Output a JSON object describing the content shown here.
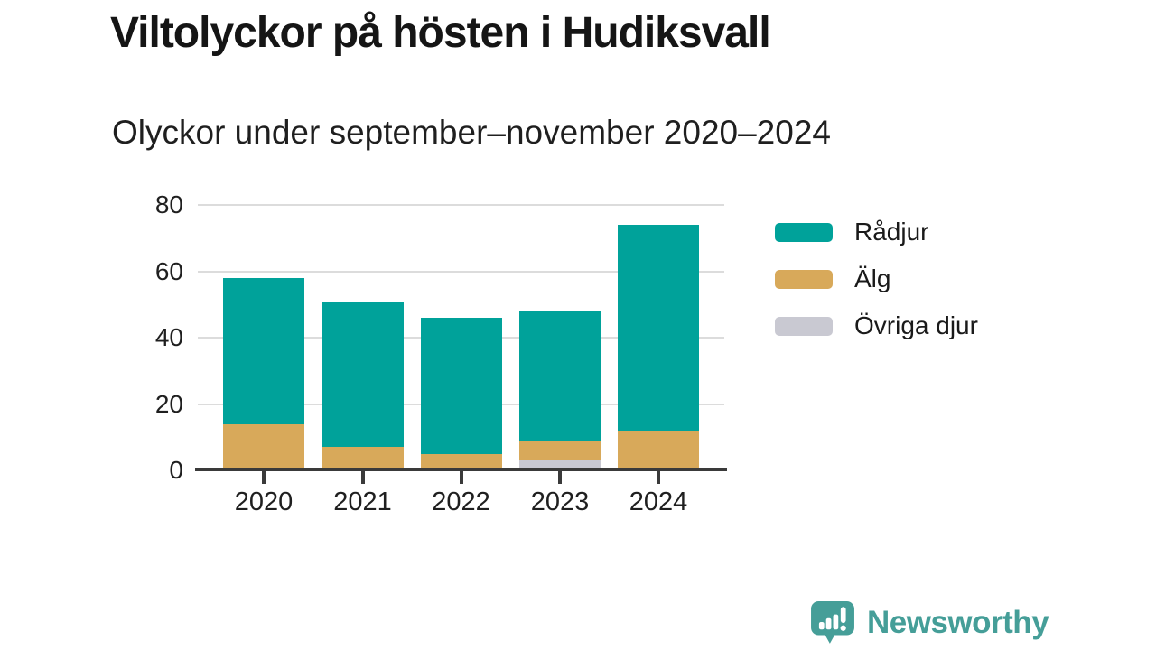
{
  "header": {
    "title": "Viltolyckor på hösten i Hudiksvall",
    "subtitle": "Olyckor under september–november 2020–2024"
  },
  "chart_data": {
    "type": "bar",
    "stacked": true,
    "title": "Viltolyckor på hösten i Hudiksvall",
    "subtitle": "Olyckor under september–november 2020–2024",
    "categories": [
      "2020",
      "2021",
      "2022",
      "2023",
      "2024"
    ],
    "series": [
      {
        "name": "Rådjur",
        "color": "#00a29a",
        "values": [
          44,
          44,
          41,
          39,
          62
        ]
      },
      {
        "name": "Älg",
        "color": "#d8a95a",
        "values": [
          14,
          7,
          5,
          6,
          12
        ]
      },
      {
        "name": "Övriga djur",
        "color": "#c9c9d2",
        "values": [
          0,
          0,
          0,
          3,
          0
        ]
      }
    ],
    "stack_totals": [
      58,
      51,
      46,
      48,
      74
    ],
    "stack_order_bottom_to_top": [
      "Övriga djur",
      "Älg",
      "Rådjur"
    ],
    "xlabel": "",
    "ylabel": "",
    "ylim": [
      0,
      80
    ],
    "yticks": [
      0,
      20,
      40,
      60,
      80
    ],
    "grid": true,
    "legend_position": "right",
    "colors": {
      "axis": "#3a3a3a",
      "gridline": "#dcdcdc",
      "tick_text": "#1f1f1f"
    }
  },
  "legend": {
    "items": [
      {
        "label": "Rådjur",
        "color": "#00a29a"
      },
      {
        "label": "Älg",
        "color": "#d8a95a"
      },
      {
        "label": "Övriga djur",
        "color": "#c9c9d2"
      }
    ]
  },
  "footer": {
    "brand": "Newsworthy",
    "brand_color": "#459e98",
    "logo_icon": "newsworthy-speech-bubble-chart-icon"
  }
}
